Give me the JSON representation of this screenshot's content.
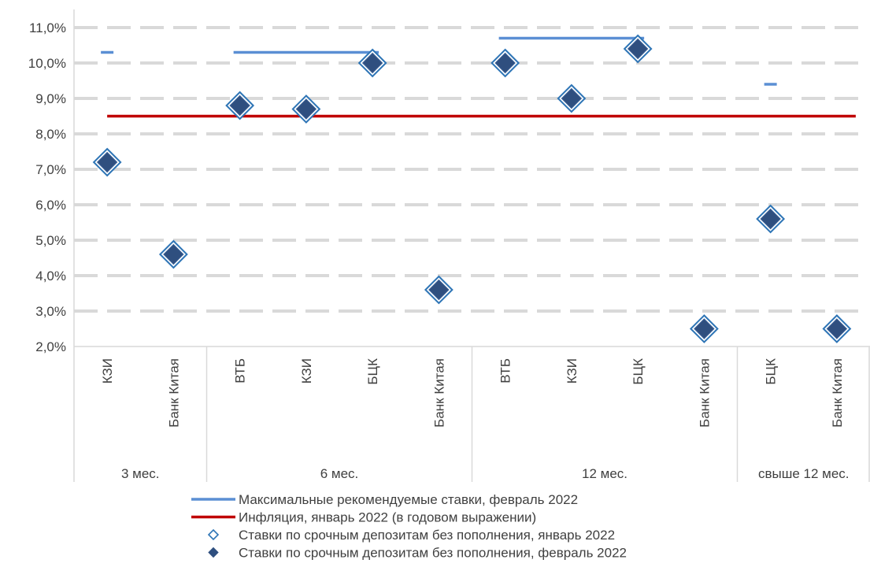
{
  "chart_data": {
    "type": "scatter",
    "title": "",
    "xlabel": "",
    "ylabel": "",
    "ylim": [
      0.02,
      0.11
    ],
    "y_tick_step": 0.01,
    "y_tick_labels": [
      "2,0%",
      "3,0%",
      "4,0%",
      "5,0%",
      "6,0%",
      "7,0%",
      "8,0%",
      "9,0%",
      "10,0%",
      "11,0%"
    ],
    "grid": "horizontal dashed",
    "legend_position": "bottom",
    "categories": [
      "КЗИ",
      "Банк Китая",
      "ВТБ",
      "КЗИ",
      "БЦК",
      "Банк Китая",
      "ВТБ",
      "КЗИ",
      "БЦК",
      "Банк Китая",
      "БЦК",
      "Банк Китая"
    ],
    "groups": [
      {
        "label": "3 мес.",
        "start": 0,
        "count": 2
      },
      {
        "label": "6 мес.",
        "start": 2,
        "count": 4
      },
      {
        "label": "12 мес.",
        "start": 6,
        "count": 4
      },
      {
        "label": "свыше 12 мес.",
        "start": 10,
        "count": 2
      }
    ],
    "series": [
      {
        "name": "Максимальные рекомендуемые ставки, февраль 2022",
        "kind": "line-by-group",
        "color": "#5B8FD4",
        "values": [
          0.103,
          null,
          0.103,
          0.103,
          0.103,
          null,
          0.107,
          0.107,
          0.107,
          null,
          0.094,
          null
        ]
      },
      {
        "name": "Инфляция, январь 2022 (в годовом выражении)",
        "kind": "line",
        "color": "#C00000",
        "values": [
          0.085,
          0.085,
          0.085,
          0.085,
          0.085,
          0.085,
          0.085,
          0.085,
          0.085,
          0.085,
          0.085,
          0.085
        ]
      },
      {
        "name": "Ставки по срочным депозитам без пополнения, январь 2022",
        "kind": "marker-hollow",
        "color": "#2E75B6",
        "values": [
          0.072,
          0.046,
          0.088,
          0.087,
          0.1,
          0.036,
          0.1,
          0.09,
          0.104,
          0.025,
          0.056,
          0.025
        ]
      },
      {
        "name": "Ставки по срочным депозитам без пополнения, февраль 2022",
        "kind": "marker-filled",
        "color": "#2F4F7F",
        "values": [
          0.072,
          0.046,
          0.088,
          0.087,
          0.1,
          0.036,
          0.1,
          0.09,
          0.104,
          0.025,
          0.056,
          0.025
        ]
      }
    ]
  }
}
